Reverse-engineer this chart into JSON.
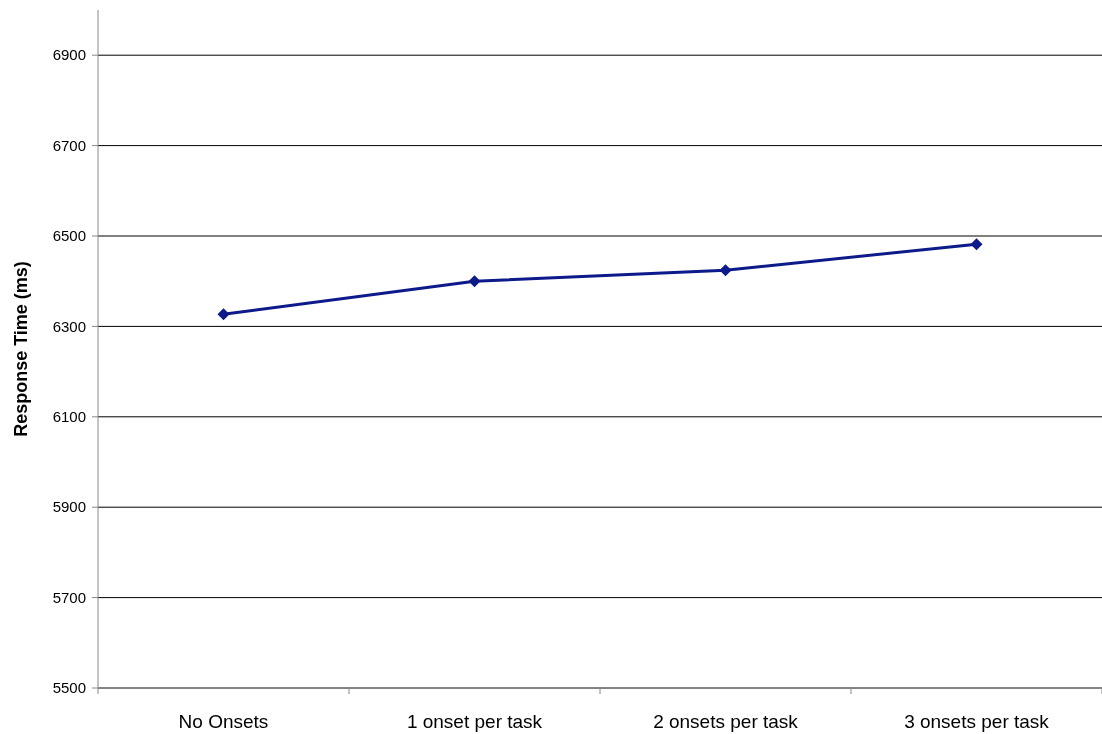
{
  "chart_data": {
    "type": "line",
    "ylabel": "Response Time (ms)",
    "categories": [
      "No Onsets",
      "1 onset  per task",
      "2 onsets per task",
      "3 onsets per task"
    ],
    "series": [
      {
        "color": "#0c1a8a",
        "values": [
          6327,
          6400,
          6424,
          6482
        ]
      }
    ],
    "ylim": [
      5500,
      7000
    ],
    "yticks": [
      5500,
      5700,
      5900,
      6100,
      6300,
      6500,
      6700,
      6900
    ],
    "grid": "y",
    "marker": "diamond",
    "line_style": "solid"
  }
}
